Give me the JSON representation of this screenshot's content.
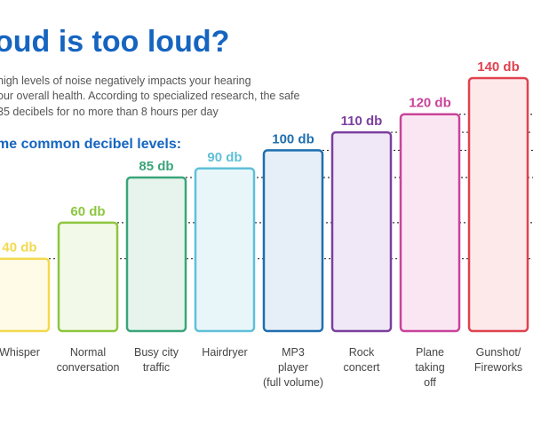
{
  "header": {
    "title": "oud is too loud?",
    "intro_lines": [
      "high levels of noise negatively impacts your hearing",
      "our overall health. According to specialized research, the safe",
      "35 decibels for no more than 8 hours per day"
    ],
    "section_heading": "me common decibel levels:"
  },
  "chart_data": {
    "type": "bar",
    "title": "",
    "xlabel": "",
    "ylabel": "",
    "unit": "db",
    "ylim": [
      0,
      140
    ],
    "grid": false,
    "legend": "none",
    "categories": [
      [
        "Whisper"
      ],
      [
        "Normal",
        "conversation"
      ],
      [
        "Busy city",
        "traffic"
      ],
      [
        "Hairdryer"
      ],
      [
        "MP3",
        "player",
        "(full volume)"
      ],
      [
        "Rock",
        "concert"
      ],
      [
        "Plane",
        "taking",
        "off"
      ],
      [
        "Gunshot/",
        "Fireworks"
      ]
    ],
    "values": [
      40,
      60,
      85,
      90,
      100,
      110,
      120,
      140
    ],
    "value_labels": [
      "40 db",
      "60 db",
      "85 db",
      "90 db",
      "100 db",
      "110 db",
      "120 db",
      "140 db"
    ],
    "colors": [
      "#f2d94e",
      "#8dc63f",
      "#3aa57a",
      "#5fc0d8",
      "#1f6fb0",
      "#7b3fa0",
      "#c8439a",
      "#e0424f"
    ],
    "fills": [
      "#fffbe6",
      "#f2f9e8",
      "#e6f4ed",
      "#e8f6fa",
      "#e6eff8",
      "#f0e8f6",
      "#fae6f2",
      "#fde8ea"
    ],
    "reference_lines": [
      40,
      60,
      85,
      100,
      110,
      120
    ]
  }
}
